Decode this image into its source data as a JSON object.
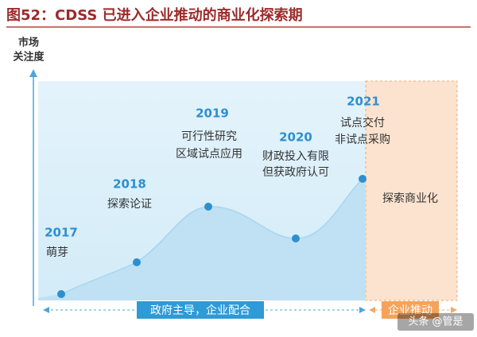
{
  "title": "图52：CDSS 已进入企业推动的商业化探索期",
  "axis_label": [
    "市场",
    "关注度"
  ],
  "stages": [
    {
      "year": "2017",
      "lines": [
        "萌芽"
      ]
    },
    {
      "year": "2018",
      "lines": [
        "探索论证"
      ]
    },
    {
      "year": "2019",
      "lines": [
        "可行性研究",
        "区域试点应用"
      ]
    },
    {
      "year": "2020",
      "lines": [
        "财政投入有限",
        "但获政府认可"
      ]
    },
    {
      "year": "2021",
      "lines": [
        "试点交付",
        "非试点采购"
      ]
    }
  ],
  "region_label": "探索商业化",
  "phases": [
    "政府主导，企业配合",
    "企业推动"
  ],
  "watermark": "头条 @管是"
}
